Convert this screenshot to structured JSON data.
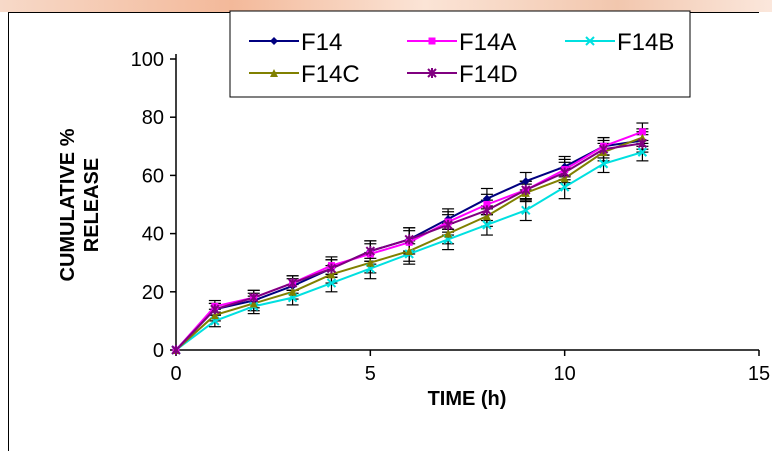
{
  "chart_data": {
    "type": "line",
    "xlabel": "TIME (h)",
    "ylabel_lines": [
      "CUMULATIVE %",
      "RELEASE"
    ],
    "xlim": [
      0,
      15
    ],
    "ylim": [
      0,
      100
    ],
    "xticks": [
      0,
      5,
      10,
      15
    ],
    "yticks": [
      0,
      20,
      40,
      60,
      80,
      100
    ],
    "grid": false,
    "legend_position": "top",
    "x": [
      0,
      1,
      2,
      3,
      4,
      5,
      6,
      7,
      8,
      9,
      10,
      11,
      12
    ],
    "series": [
      {
        "name": "F14",
        "color": "#000080",
        "marker": "diamond",
        "values": [
          0,
          14,
          17,
          22,
          28,
          34,
          38,
          45,
          52,
          58,
          63,
          70,
          72
        ],
        "errors": [
          0,
          2,
          2.5,
          2.5,
          3,
          3.5,
          4,
          3.5,
          3.5,
          3,
          3.5,
          3,
          3
        ]
      },
      {
        "name": "F14A",
        "color": "#ff00ff",
        "marker": "square",
        "values": [
          0,
          15,
          18,
          23,
          29,
          33,
          37,
          44,
          50,
          55,
          62,
          70,
          75
        ],
        "errors": [
          0,
          2,
          2.5,
          2.5,
          3,
          3.5,
          4,
          3.5,
          3.5,
          3,
          3.5,
          3,
          3
        ]
      },
      {
        "name": "F14B",
        "color": "#00e0e0",
        "marker": "x",
        "values": [
          0,
          10,
          15,
          18,
          23,
          28,
          33,
          38,
          43,
          48,
          56,
          64,
          68
        ],
        "errors": [
          0,
          2,
          2.5,
          2.5,
          3,
          3.5,
          3.5,
          3.5,
          3.5,
          3.5,
          4,
          3,
          3
        ]
      },
      {
        "name": "F14C",
        "color": "#808000",
        "marker": "triangle",
        "values": [
          0,
          12,
          16,
          20,
          26,
          30,
          34,
          40,
          46,
          54,
          59,
          68,
          73
        ],
        "errors": [
          0,
          2,
          2.5,
          2.5,
          3,
          3.5,
          3.5,
          3.5,
          3.5,
          3,
          3.5,
          3,
          3
        ]
      },
      {
        "name": "F14D",
        "color": "#800080",
        "marker": "star",
        "values": [
          0,
          14,
          18,
          23,
          28,
          34,
          38,
          43,
          48,
          55,
          61,
          69,
          71
        ],
        "errors": [
          0,
          2,
          2.5,
          2.5,
          3,
          3.5,
          4,
          3.5,
          3.5,
          3,
          3.5,
          3,
          3
        ]
      }
    ]
  }
}
